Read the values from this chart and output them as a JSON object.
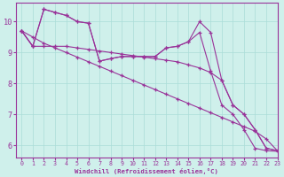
{
  "background_color": "#cff0eb",
  "grid_color": "#aaddd8",
  "line_color": "#993399",
  "xlabel": "Windchill (Refroidissement éolien,°C)",
  "xlim": [
    -0.5,
    23
  ],
  "ylim": [
    5.6,
    10.6
  ],
  "yticks": [
    6,
    7,
    8,
    9,
    10
  ],
  "xticks": [
    0,
    1,
    2,
    3,
    4,
    5,
    6,
    7,
    8,
    9,
    10,
    11,
    12,
    13,
    14,
    15,
    16,
    17,
    18,
    19,
    20,
    21,
    22,
    23
  ],
  "line_A": {
    "x": [
      0,
      1,
      2,
      3,
      4,
      5,
      6,
      7,
      8,
      9,
      10,
      11,
      12,
      13,
      14,
      15,
      16,
      17,
      18,
      19,
      20,
      21,
      22,
      23
    ],
    "y": [
      9.7,
      9.5,
      9.3,
      9.15,
      9.0,
      8.85,
      8.7,
      8.55,
      8.4,
      8.25,
      8.1,
      7.95,
      7.8,
      7.65,
      7.5,
      7.35,
      7.2,
      7.05,
      6.9,
      6.75,
      6.6,
      6.45,
      6.2,
      5.82
    ]
  },
  "line_B": {
    "x": [
      0,
      1,
      2,
      3,
      4,
      5,
      6,
      7,
      8,
      9,
      10,
      11,
      12,
      13,
      14,
      15,
      16,
      17,
      18,
      19,
      20,
      21,
      22,
      23
    ],
    "y": [
      9.7,
      9.2,
      9.2,
      9.2,
      9.2,
      9.15,
      9.1,
      9.05,
      9.0,
      8.95,
      8.9,
      8.85,
      8.8,
      8.75,
      8.7,
      8.6,
      8.5,
      8.35,
      8.1,
      7.3,
      7.0,
      6.5,
      5.9,
      5.82
    ]
  },
  "line_C": {
    "x": [
      0,
      1,
      2,
      3,
      4,
      5,
      6,
      7,
      8,
      9,
      10,
      11,
      12,
      13,
      14,
      15,
      16,
      17,
      18,
      19,
      20,
      21,
      22,
      23
    ],
    "y": [
      9.7,
      9.2,
      10.4,
      10.3,
      10.2,
      10.0,
      9.95,
      8.72,
      8.8,
      8.87,
      8.87,
      8.87,
      8.87,
      9.15,
      9.2,
      9.35,
      10.0,
      9.65,
      8.1,
      7.3,
      7.0,
      6.5,
      5.9,
      5.82
    ]
  },
  "line_D": {
    "x": [
      0,
      1,
      2,
      3,
      4,
      5,
      6,
      7,
      8,
      9,
      10,
      11,
      12,
      13,
      14,
      15,
      16,
      17,
      18,
      19,
      20,
      21,
      22,
      23
    ],
    "y": [
      9.7,
      9.2,
      10.4,
      10.3,
      10.2,
      10.0,
      9.95,
      8.72,
      8.8,
      8.87,
      8.87,
      8.87,
      8.87,
      9.15,
      9.2,
      9.35,
      9.65,
      8.4,
      7.3,
      7.0,
      6.5,
      5.9,
      5.82,
      5.8
    ]
  }
}
